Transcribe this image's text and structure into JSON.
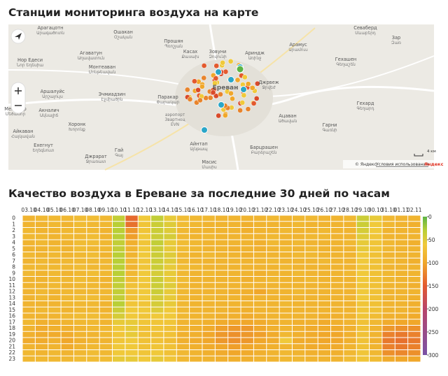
{
  "map_section": {
    "title": "Станции мониторинга воздуха на карте",
    "labels": [
      {
        "ru": "Арагацотн",
        "hy": "Արագածոտն"
      },
      {
        "ru": "Ошакан",
        "hy": "Օշական"
      },
      {
        "ru": "Прошян",
        "hy": "Պռոշյան"
      },
      {
        "ru": "Нор Едеси",
        "hy": "Նոր Եդեսիա"
      },
      {
        "ru": "Агаватун",
        "hy": "Աղավատուն"
      },
      {
        "ru": "Касах",
        "hy": "Քասախ"
      },
      {
        "ru": "Зовуни",
        "hy": "Զովունի"
      },
      {
        "ru": "Ариндж",
        "hy": "Առինջ"
      },
      {
        "ru": "Арамус",
        "hy": "Արամուս"
      },
      {
        "ru": "Севаберд",
        "hy": "Սևաբերդ"
      },
      {
        "ru": "Зар",
        "hy": "Զառ"
      },
      {
        "ru": "Гехашен",
        "hy": "Գեղաշեն"
      },
      {
        "ru": "Монтеаван",
        "hy": "Մոնթեավան"
      },
      {
        "ru": "Джрвеж",
        "hy": "Ջրվեժ"
      },
      {
        "ru": "Аршалуйс",
        "hy": "Արշալույս"
      },
      {
        "ru": "Эчмиадзин",
        "hy": "Էջմիածին"
      },
      {
        "ru": "Паракар",
        "hy": "Փարակար"
      },
      {
        "ru": "Гехард",
        "hy": "Գեղարդ"
      },
      {
        "ru": "Мецамор",
        "hy": "Մեծամոր"
      },
      {
        "ru": "Акналич",
        "hy": "Ակնալիճ"
      },
      {
        "ru": "Ацаван",
        "hy": "Ածավան"
      },
      {
        "ru": "Хоронк",
        "hy": "Խորոնք"
      },
      {
        "ru": "Гарни",
        "hy": "Գառնի"
      },
      {
        "ru": "Айкаван",
        "hy": "Հայկավան"
      },
      {
        "ru": "Ехегнут",
        "hy": "Եղեգնուտ"
      },
      {
        "ru": "Айнтап",
        "hy": "Այնթապ"
      },
      {
        "ru": "Барцрашен",
        "hy": "Բարձրաշեն"
      },
      {
        "ru": "Гай",
        "hy": "Գայ"
      },
      {
        "ru": "Джрарат",
        "hy": "Ջրառատ"
      },
      {
        "ru": "Масис",
        "hy": "Մասիս"
      }
    ],
    "airport": [
      "аэропорт",
      "Звартноц",
      "EVN"
    ],
    "city": "Ереван",
    "scale": "4 км",
    "attribution": "© Яндекс",
    "terms": "Условия использования",
    "logo": "Яндекс"
  },
  "chart_data": {
    "type": "heatmap",
    "title": "Качество воздуха в Ереване за последние 30 дней по часам",
    "x": [
      "03.10",
      "04.10",
      "05.10",
      "06.10",
      "07.10",
      "08.10",
      "09.10",
      "10.10",
      "11.10",
      "12.10",
      "13.10",
      "14.10",
      "15.10",
      "16.10",
      "17.10",
      "18.10",
      "19.10",
      "20.10",
      "21.10",
      "22.10",
      "23.10",
      "24.10",
      "25.10",
      "26.10",
      "27.10",
      "28.10",
      "29.10",
      "30.10",
      "31.10",
      "01.11",
      "02.11"
    ],
    "y": [
      0,
      1,
      2,
      3,
      4,
      5,
      6,
      7,
      8,
      9,
      10,
      11,
      12,
      13,
      14,
      15,
      16,
      17,
      18,
      19,
      20,
      21,
      22,
      23
    ],
    "values": [
      [
        85,
        85,
        80,
        80,
        85,
        85,
        80,
        85,
        80,
        80,
        85,
        85,
        85,
        85,
        85,
        85,
        85,
        80,
        85,
        90,
        95,
        85,
        80,
        80
      ],
      [
        80,
        85,
        85,
        80,
        80,
        85,
        85,
        80,
        80,
        85,
        85,
        85,
        80,
        80,
        85,
        80,
        85,
        90,
        95,
        95,
        95,
        90,
        85,
        80
      ],
      [
        80,
        80,
        85,
        85,
        85,
        80,
        80,
        85,
        80,
        80,
        80,
        80,
        85,
        85,
        85,
        80,
        85,
        90,
        90,
        95,
        90,
        85,
        80,
        80
      ],
      [
        80,
        85,
        80,
        80,
        85,
        85,
        85,
        80,
        80,
        85,
        80,
        85,
        80,
        80,
        80,
        85,
        80,
        85,
        90,
        95,
        100,
        95,
        85,
        80
      ],
      [
        75,
        75,
        80,
        80,
        75,
        75,
        80,
        80,
        75,
        80,
        75,
        80,
        80,
        75,
        80,
        80,
        75,
        80,
        85,
        85,
        90,
        85,
        80,
        75
      ],
      [
        75,
        80,
        80,
        75,
        75,
        80,
        75,
        80,
        80,
        75,
        80,
        80,
        80,
        75,
        80,
        80,
        75,
        80,
        80,
        85,
        85,
        80,
        75,
        75
      ],
      [
        80,
        80,
        85,
        85,
        80,
        80,
        85,
        80,
        80,
        80,
        85,
        85,
        80,
        80,
        85,
        85,
        80,
        85,
        80,
        80,
        85,
        80,
        80,
        75
      ],
      [
        35,
        30,
        30,
        30,
        35,
        35,
        30,
        30,
        30,
        30,
        35,
        35,
        35,
        35,
        30,
        40,
        45,
        55,
        60,
        65,
        65,
        60,
        60,
        55
      ],
      [
        140,
        135,
        110,
        105,
        90,
        85,
        85,
        80,
        85,
        80,
        75,
        70,
        70,
        70,
        65,
        60,
        60,
        55,
        55,
        55,
        60,
        60,
        60,
        55
      ],
      [
        60,
        65,
        65,
        60,
        65,
        60,
        60,
        65,
        65,
        60,
        60,
        65,
        60,
        60,
        65,
        60,
        65,
        65,
        70,
        70,
        70,
        70,
        65,
        60
      ],
      [
        35,
        40,
        40,
        40,
        35,
        40,
        40,
        40,
        40,
        45,
        40,
        40,
        40,
        45,
        45,
        50,
        60,
        65,
        65,
        70,
        70,
        65,
        60,
        55
      ],
      [
        55,
        50,
        50,
        45,
        55,
        55,
        50,
        50,
        55,
        55,
        55,
        50,
        55,
        55,
        55,
        60,
        60,
        65,
        70,
        70,
        75,
        70,
        70,
        65
      ],
      [
        75,
        75,
        80,
        80,
        75,
        75,
        80,
        80,
        75,
        80,
        75,
        80,
        80,
        80,
        80,
        80,
        80,
        85,
        85,
        90,
        90,
        85,
        80,
        80
      ],
      [
        80,
        80,
        85,
        85,
        80,
        80,
        85,
        85,
        80,
        85,
        85,
        85,
        85,
        85,
        85,
        85,
        85,
        85,
        90,
        90,
        95,
        90,
        85,
        85
      ],
      [
        80,
        85,
        85,
        80,
        85,
        85,
        80,
        85,
        85,
        80,
        85,
        85,
        85,
        80,
        85,
        85,
        85,
        90,
        95,
        100,
        100,
        95,
        90,
        85
      ],
      [
        85,
        85,
        85,
        85,
        85,
        85,
        85,
        85,
        85,
        85,
        85,
        85,
        85,
        85,
        85,
        85,
        90,
        95,
        105,
        110,
        110,
        100,
        95,
        90
      ],
      [
        85,
        85,
        85,
        85,
        85,
        90,
        85,
        85,
        85,
        85,
        85,
        85,
        90,
        85,
        85,
        90,
        90,
        100,
        110,
        115,
        115,
        105,
        100,
        90
      ],
      [
        85,
        90,
        90,
        85,
        85,
        85,
        90,
        85,
        85,
        85,
        90,
        85,
        90,
        90,
        85,
        90,
        95,
        100,
        110,
        110,
        110,
        100,
        95,
        90
      ],
      [
        85,
        85,
        85,
        85,
        90,
        90,
        85,
        85,
        85,
        90,
        85,
        85,
        100,
        85,
        85,
        85,
        90,
        95,
        100,
        105,
        100,
        95,
        90,
        85
      ],
      [
        80,
        85,
        85,
        80,
        80,
        85,
        85,
        80,
        85,
        85,
        80,
        85,
        85,
        85,
        85,
        85,
        85,
        90,
        90,
        95,
        95,
        90,
        85,
        85
      ],
      [
        85,
        85,
        80,
        85,
        85,
        80,
        85,
        85,
        80,
        85,
        85,
        85,
        85,
        85,
        80,
        85,
        85,
        85,
        85,
        80,
        60,
        85,
        80,
        80
      ],
      [
        80,
        80,
        85,
        85,
        80,
        85,
        80,
        85,
        85,
        80,
        85,
        85,
        80,
        85,
        85,
        85,
        85,
        90,
        90,
        90,
        95,
        90,
        85,
        80
      ],
      [
        80,
        85,
        85,
        80,
        85,
        80,
        80,
        85,
        85,
        85,
        80,
        85,
        85,
        85,
        85,
        85,
        85,
        90,
        95,
        95,
        95,
        95,
        90,
        85
      ],
      [
        85,
        85,
        80,
        80,
        85,
        85,
        85,
        80,
        85,
        85,
        85,
        85,
        85,
        85,
        85,
        85,
        90,
        95,
        95,
        100,
        100,
        95,
        90,
        85
      ],
      [
        85,
        85,
        85,
        85,
        85,
        85,
        85,
        85,
        85,
        85,
        85,
        85,
        85,
        85,
        85,
        85,
        90,
        90,
        95,
        100,
        100,
        95,
        90,
        85
      ],
      [
        80,
        85,
        85,
        85,
        80,
        85,
        85,
        85,
        85,
        80,
        85,
        85,
        85,
        85,
        85,
        85,
        85,
        85,
        90,
        90,
        90,
        85,
        80,
        75
      ],
      [
        40,
        40,
        45,
        50,
        55,
        55,
        60,
        60,
        65,
        60,
        60,
        65,
        60,
        60,
        65,
        65,
        65,
        70,
        70,
        70,
        70,
        70,
        65,
        65
      ],
      [
        55,
        60,
        60,
        65,
        65,
        65,
        70,
        70,
        70,
        70,
        70,
        70,
        70,
        70,
        70,
        70,
        75,
        80,
        85,
        85,
        90,
        85,
        80,
        75
      ],
      [
        80,
        80,
        85,
        85,
        80,
        80,
        85,
        80,
        85,
        80,
        80,
        85,
        85,
        85,
        85,
        85,
        90,
        95,
        110,
        125,
        130,
        125,
        115,
        95
      ],
      [
        85,
        85,
        85,
        85,
        85,
        85,
        85,
        85,
        85,
        85,
        85,
        85,
        85,
        85,
        85,
        85,
        90,
        100,
        115,
        130,
        135,
        130,
        120,
        100
      ],
      [
        85,
        90,
        85,
        85,
        90,
        85,
        85,
        90,
        85,
        85,
        85,
        90,
        85,
        90,
        90,
        90,
        95,
        100,
        115,
        125,
        130,
        125,
        115,
        100
      ]
    ],
    "colorscale": [
      [
        0,
        "#5cb446"
      ],
      [
        30,
        "#b9cf36"
      ],
      [
        60,
        "#f0c93a"
      ],
      [
        100,
        "#f0a72a"
      ],
      [
        150,
        "#e35a2e"
      ],
      [
        200,
        "#b8456a"
      ],
      [
        300,
        "#7a52a6"
      ]
    ],
    "zlim": [
      0,
      300
    ],
    "colorbar_ticks": [
      0,
      50,
      100,
      150,
      200,
      250,
      300
    ]
  }
}
